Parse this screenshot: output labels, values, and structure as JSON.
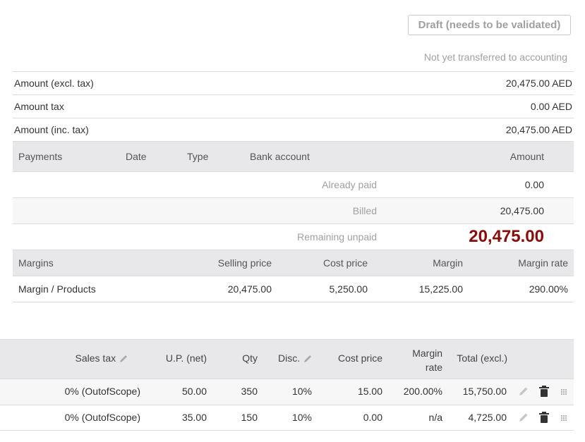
{
  "status": {
    "badge": "Draft (needs to be validated)",
    "accounting": "Not yet transferred to accounting"
  },
  "summary": [
    {
      "label": "Amount (excl. tax)",
      "value": "20,475.00 AED"
    },
    {
      "label": "Amount tax",
      "value": "0.00 AED"
    },
    {
      "label": "Amount (inc. tax)",
      "value": "20,475.00 AED"
    }
  ],
  "payments": {
    "headers": {
      "payments": "Payments",
      "date": "Date",
      "type": "Type",
      "bank": "Bank account",
      "amount": "Amount"
    },
    "already_paid_label": "Already paid",
    "already_paid_value": "0.00",
    "billed_label": "Billed",
    "billed_value": "20,475.00",
    "remaining_label": "Remaining unpaid",
    "remaining_value": "20,475.00",
    "remaining_color": "#8b0a0a"
  },
  "margins": {
    "headers": {
      "margins": "Margins",
      "selling": "Selling price",
      "cost": "Cost price",
      "margin": "Margin",
      "rate": "Margin rate"
    },
    "row": {
      "label": "Margin / Products",
      "selling": "20,475.00",
      "cost": "5,250.00",
      "margin": "15,225.00",
      "rate": "290.00%"
    }
  },
  "lines": {
    "headers": {
      "sales_tax": "Sales tax",
      "up_net": "U.P. (net)",
      "qty": "Qty",
      "disc": "Disc.",
      "cost": "Cost price",
      "margin_rate_1": "Margin",
      "margin_rate_2": "rate",
      "total": "Total (excl.)"
    },
    "rows": [
      {
        "tax": "0% (OutofScope)",
        "up": "50.00",
        "qty": "350",
        "disc": "10%",
        "cost": "15.00",
        "rate": "200.00%",
        "total": "15,750.00"
      },
      {
        "tax": "0% (OutofScope)",
        "up": "35.00",
        "qty": "150",
        "disc": "10%",
        "cost": "0.00",
        "rate": "n/a",
        "total": "4,725.00"
      }
    ]
  }
}
